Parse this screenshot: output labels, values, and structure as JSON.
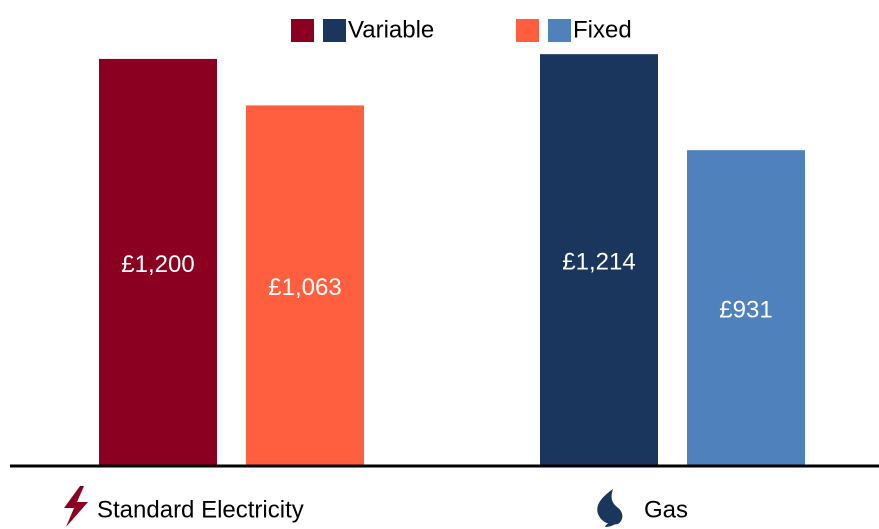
{
  "chart_data": {
    "type": "bar",
    "categories": [
      "Standard Electricity",
      "Gas"
    ],
    "series": [
      {
        "name": "Variable",
        "colors": [
          "#8b0020",
          "#1b365d"
        ],
        "values": [
          1200,
          1214
        ],
        "value_labels": [
          "£1,200",
          "£1,214"
        ]
      },
      {
        "name": "Fixed",
        "colors": [
          "#ff5f3f",
          "#4f81bd"
        ],
        "values": [
          1063,
          931
        ],
        "value_labels": [
          "£1,063",
          "£931"
        ]
      }
    ],
    "ylim": [
      0,
      1300
    ],
    "legend": "top"
  }
}
